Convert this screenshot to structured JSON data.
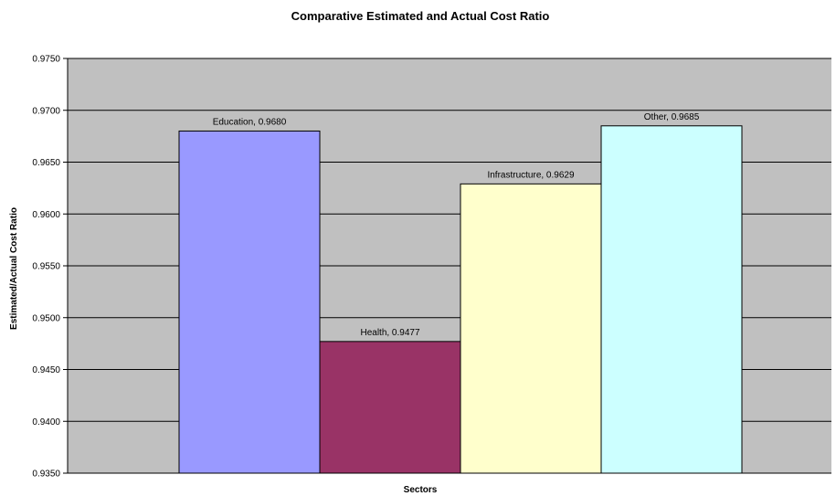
{
  "chart_data": {
    "type": "bar",
    "title": "Comparative Estimated and Actual Cost Ratio",
    "xlabel": "Sectors",
    "ylabel": "Estimated/Actual Cost Ratio",
    "ylim": [
      0.935,
      0.975
    ],
    "ytick_step": 0.005,
    "ytick_labels": [
      "0.9350",
      "0.9400",
      "0.9450",
      "0.9500",
      "0.9550",
      "0.9600",
      "0.9650",
      "0.9700",
      "0.9750"
    ],
    "grid": true,
    "legend": "none",
    "series": [
      {
        "name": "Education",
        "value": 0.968,
        "label": "Education, 0.9680",
        "color": "#9999ff"
      },
      {
        "name": "Health",
        "value": 0.9477,
        "label": "Health, 0.9477",
        "color": "#993366"
      },
      {
        "name": "Infrastructure",
        "value": 0.9629,
        "label": "Infrastructure, 0.9629",
        "color": "#ffffcc"
      },
      {
        "name": "Other",
        "value": 0.9685,
        "label": "Other, 0.9685",
        "color": "#ccffff"
      }
    ],
    "colors": {
      "plot_bg": "#c0c0c0",
      "gridline": "#000000",
      "bar_border": "#000000"
    }
  }
}
